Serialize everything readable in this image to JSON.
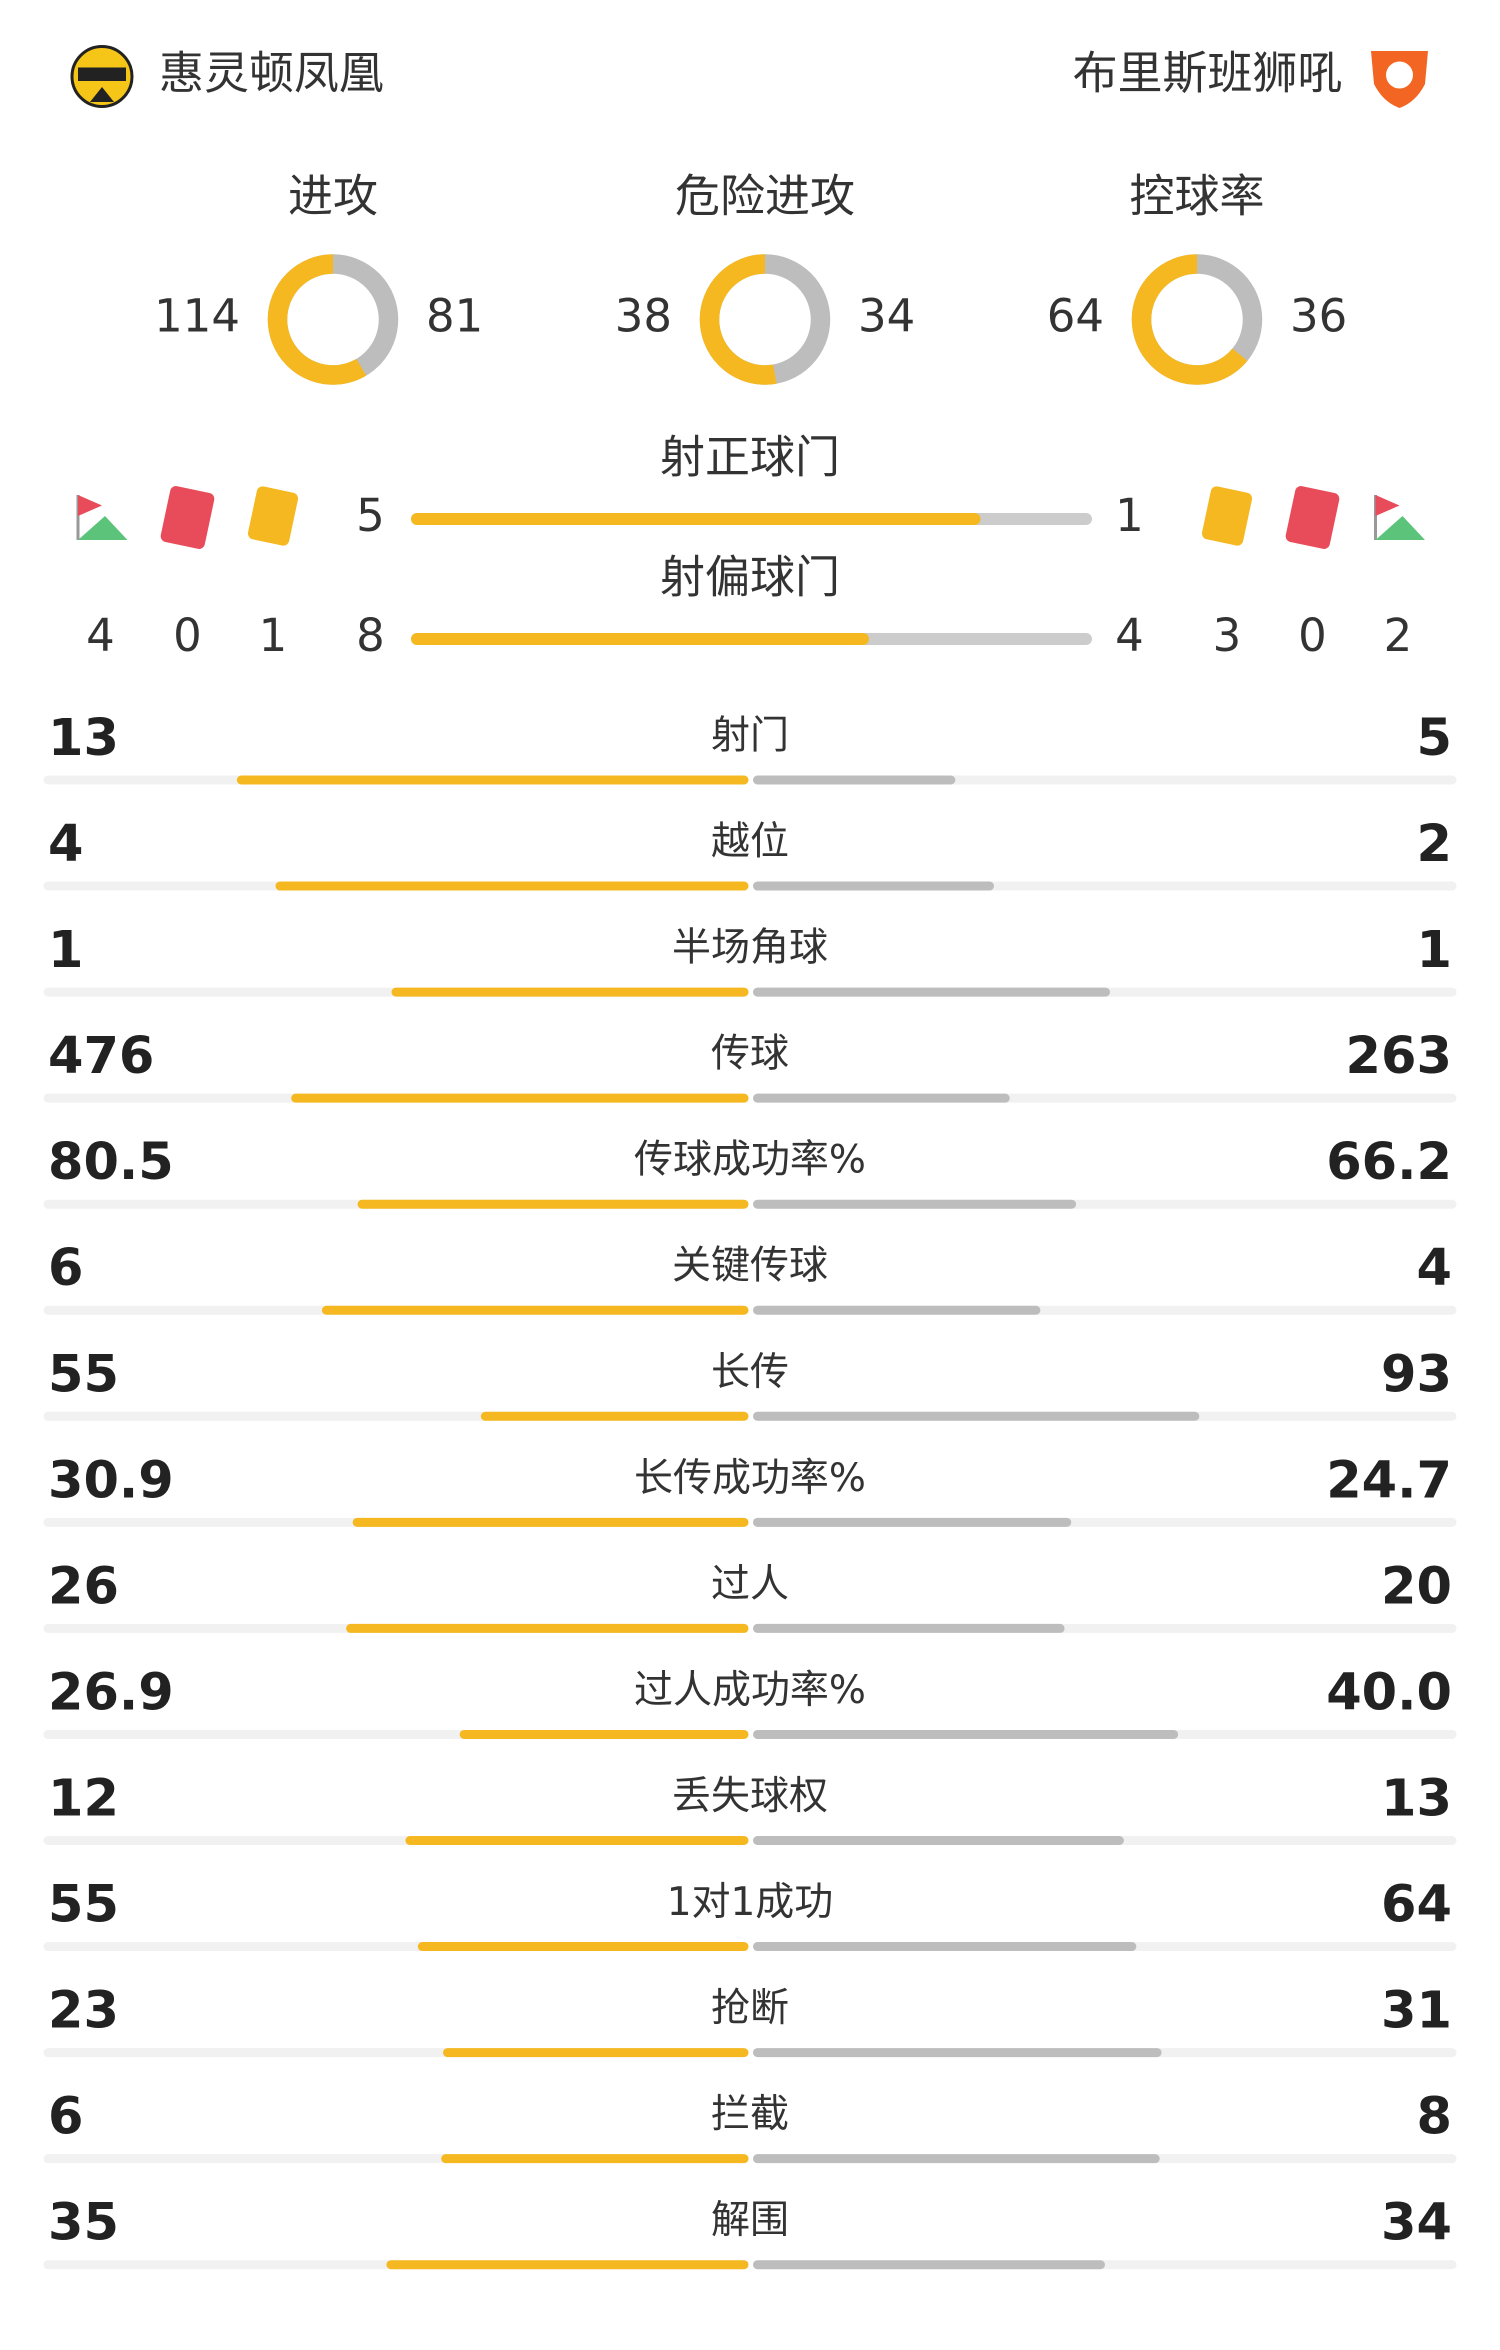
{
  "home": {
    "name": "惠灵顿凤凰"
  },
  "away": {
    "name": "布里斯班狮吼"
  },
  "rings": [
    {
      "label": "进攻",
      "home": 114,
      "away": 81
    },
    {
      "label": "危险进攻",
      "home": 38,
      "away": 34
    },
    {
      "label": "控球率",
      "home": 64,
      "away": 36
    }
  ],
  "target_bars": [
    {
      "label": "射正球门",
      "home": 5,
      "away": 1
    },
    {
      "label": "射偏球门",
      "home": 8,
      "away": 4
    }
  ],
  "cards": {
    "home": {
      "corners": 4,
      "red": 0,
      "yellow": 1
    },
    "away": {
      "yellow": 3,
      "red": 0,
      "corners": 2
    }
  },
  "stats": [
    {
      "label": "射门",
      "home": 13,
      "away": 5
    },
    {
      "label": "越位",
      "home": 4,
      "away": 2
    },
    {
      "label": "半场角球",
      "home": 1,
      "away": 1
    },
    {
      "label": "传球",
      "home": 476,
      "away": 263
    },
    {
      "label": "传球成功率%",
      "home": 80.5,
      "away": 66.2
    },
    {
      "label": "关键传球",
      "home": 6,
      "away": 4
    },
    {
      "label": "长传",
      "home": 55,
      "away": 93
    },
    {
      "label": "长传成功率%",
      "home": 30.9,
      "away": 24.7
    },
    {
      "label": "过人",
      "home": 26,
      "away": 20
    },
    {
      "label": "过人成功率%",
      "home": 26.9,
      "away": {
        "value": 40,
        "label": "40.0"
      }
    },
    {
      "label": "丢失球权",
      "home": 12,
      "away": 13
    },
    {
      "label": "1对1成功",
      "home": 55,
      "away": 64
    },
    {
      "label": "抢断",
      "home": 23,
      "away": 31
    },
    {
      "label": "拦截",
      "home": 6,
      "away": 8
    },
    {
      "label": "解围",
      "home": 35,
      "away": 34
    }
  ]
}
